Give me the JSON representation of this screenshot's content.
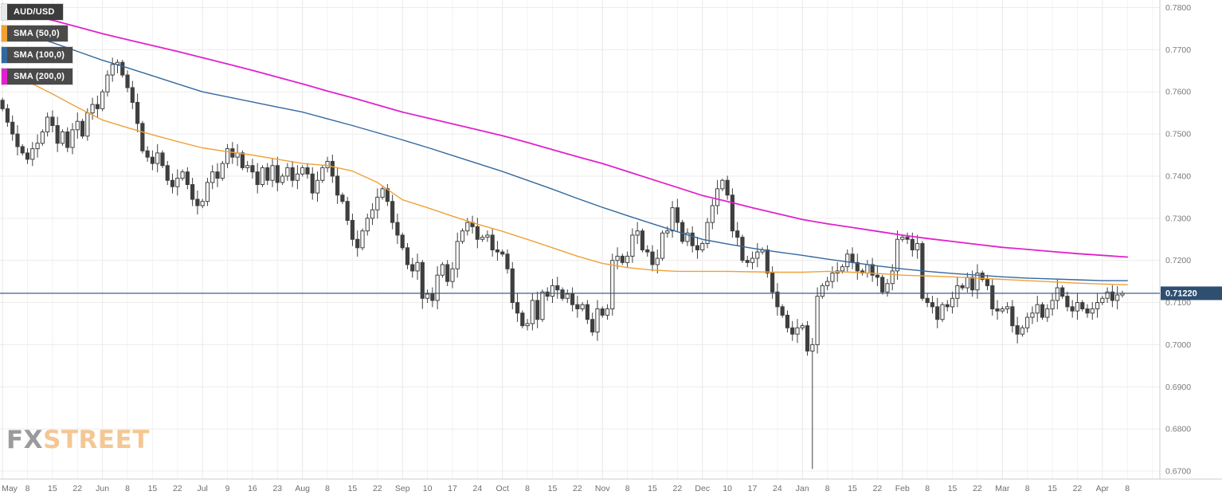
{
  "watermark": {
    "fx": "FX",
    "street": "STREET"
  },
  "legend": {
    "symbol": {
      "label": "AUD/USD",
      "chip_color": "#e9e9e9"
    },
    "indicators": [
      {
        "label": "SMA (50,0)",
        "chip_color": "#efa138"
      },
      {
        "label": "SMA (100,0)",
        "chip_color": "#33689e"
      },
      {
        "label": "SMA (200,0)",
        "chip_color": "#e022cc"
      }
    ]
  },
  "chart_data": {
    "type": "candlestick",
    "symbol": "AUD/USD",
    "title": "AUD/USD daily candlestick chart with SMA(50), SMA(100), SMA(200)",
    "current_price": 0.7122,
    "current_price_label": "0.71220",
    "price_line_color": "#2e4f70",
    "candle_up_fill": "#ffffff",
    "candle_down_fill": "#3f3f3f",
    "candle_stroke": "#3f3f3f",
    "y_axis": {
      "min": 0.67,
      "max": 0.78,
      "tick_step": 0.01,
      "tick_labels": [
        "0.7800",
        "0.7700",
        "0.7600",
        "0.7500",
        "0.7400",
        "0.7300",
        "0.7200",
        "0.7100",
        "0.7000",
        "0.6900",
        "0.6800",
        "0.6700"
      ]
    },
    "x_axis": {
      "labels": [
        "May",
        "8",
        "15",
        "22",
        "Jun",
        "8",
        "15",
        "22",
        "Jul",
        "9",
        "16",
        "23",
        "Aug",
        "8",
        "15",
        "22",
        "Sep",
        "10",
        "17",
        "24",
        "Oct",
        "8",
        "15",
        "22",
        "Nov",
        "8",
        "15",
        "22",
        "Dec",
        "10",
        "17",
        "24",
        "Jan",
        "8",
        "15",
        "22",
        "Feb",
        "8",
        "15",
        "22",
        "Mar",
        "8",
        "15",
        "22",
        "Apr",
        "8"
      ],
      "label_slot_step": 5,
      "total_slots": 232
    },
    "candles": {
      "first_open": 0.758,
      "closes": [
        0.756,
        0.7528,
        0.75,
        0.747,
        0.7455,
        0.744,
        0.7465,
        0.7478,
        0.7505,
        0.754,
        0.752,
        0.7478,
        0.7505,
        0.7468,
        0.751,
        0.753,
        0.7495,
        0.755,
        0.757,
        0.756,
        0.76,
        0.764,
        0.7665,
        0.767,
        0.764,
        0.761,
        0.7575,
        0.7525,
        0.746,
        0.7445,
        0.743,
        0.7455,
        0.7425,
        0.739,
        0.7375,
        0.7395,
        0.741,
        0.738,
        0.7345,
        0.733,
        0.734,
        0.7385,
        0.741,
        0.7395,
        0.743,
        0.7465,
        0.7445,
        0.7455,
        0.742,
        0.7425,
        0.741,
        0.738,
        0.742,
        0.739,
        0.7425,
        0.7385,
        0.74,
        0.742,
        0.739,
        0.7405,
        0.742,
        0.7405,
        0.736,
        0.739,
        0.742,
        0.7435,
        0.74,
        0.7355,
        0.734,
        0.7295,
        0.725,
        0.723,
        0.727,
        0.73,
        0.732,
        0.735,
        0.737,
        0.734,
        0.729,
        0.726,
        0.723,
        0.719,
        0.7175,
        0.7195,
        0.711,
        0.712,
        0.7105,
        0.7165,
        0.719,
        0.715,
        0.718,
        0.7245,
        0.727,
        0.729,
        0.728,
        0.725,
        0.7255,
        0.726,
        0.7225,
        0.722,
        0.7215,
        0.718,
        0.71,
        0.7075,
        0.7045,
        0.705,
        0.7105,
        0.706,
        0.7125,
        0.7115,
        0.714,
        0.713,
        0.711,
        0.712,
        0.7095,
        0.7085,
        0.7095,
        0.706,
        0.703,
        0.7085,
        0.707,
        0.7085,
        0.72,
        0.721,
        0.7195,
        0.721,
        0.726,
        0.727,
        0.7225,
        0.722,
        0.719,
        0.7205,
        0.7265,
        0.727,
        0.7325,
        0.729,
        0.7245,
        0.7265,
        0.7235,
        0.7225,
        0.724,
        0.729,
        0.733,
        0.737,
        0.739,
        0.7355,
        0.727,
        0.7255,
        0.72,
        0.7195,
        0.7205,
        0.722,
        0.7225,
        0.717,
        0.7125,
        0.709,
        0.707,
        0.704,
        0.7025,
        0.704,
        0.7045,
        0.6985,
        0.7,
        0.7115,
        0.714,
        0.715,
        0.717,
        0.7175,
        0.7185,
        0.7215,
        0.7195,
        0.7175,
        0.717,
        0.719,
        0.7165,
        0.716,
        0.7125,
        0.7145,
        0.7175,
        0.725,
        0.7255,
        0.725,
        0.7225,
        0.724,
        0.711,
        0.71,
        0.709,
        0.706,
        0.7095,
        0.709,
        0.711,
        0.714,
        0.7135,
        0.716,
        0.713,
        0.717,
        0.7155,
        0.714,
        0.7085,
        0.708,
        0.7085,
        0.709,
        0.7045,
        0.7025,
        0.704,
        0.7065,
        0.7075,
        0.7095,
        0.7065,
        0.7085,
        0.7105,
        0.7135,
        0.7115,
        0.709,
        0.708,
        0.71,
        0.7085,
        0.7075,
        0.7085,
        0.71,
        0.711,
        0.7125,
        0.7105,
        0.7118,
        0.7122
      ],
      "wick_overrides": {
        "23": {
          "high": 0.7677
        },
        "84": {
          "low": 0.7085
        },
        "118": {
          "low": 0.7021
        },
        "144": {
          "high": 0.7394
        },
        "162": {
          "low": 0.6705
        },
        "203": {
          "low": 0.7003
        }
      }
    },
    "sma_series": [
      {
        "name": "SMA (50,0)",
        "color": "#efa138",
        "width": 1.4,
        "anchor_step": 5,
        "values": [
          0.765,
          0.7625,
          0.7595,
          0.7563,
          0.7533,
          0.7515,
          0.7498,
          0.7482,
          0.7467,
          0.7458,
          0.745,
          0.744,
          0.743,
          0.7425,
          0.7412,
          0.7385,
          0.7344,
          0.7325,
          0.7305,
          0.7286,
          0.7269,
          0.725,
          0.723,
          0.721,
          0.7193,
          0.7183,
          0.7177,
          0.7174,
          0.7174,
          0.7174,
          0.7173,
          0.7172,
          0.7172,
          0.7174,
          0.7172,
          0.7169,
          0.7165,
          0.7163,
          0.7161,
          0.7158,
          0.7155,
          0.7152,
          0.7149,
          0.7146,
          0.7144,
          0.7142
        ]
      },
      {
        "name": "SMA (100,0)",
        "color": "#33689e",
        "width": 1.4,
        "anchor_step": 5,
        "values": [
          0.7755,
          0.7737,
          0.7717,
          0.7696,
          0.7675,
          0.7657,
          0.7638,
          0.7619,
          0.76,
          0.7588,
          0.7576,
          0.7564,
          0.7552,
          0.7536,
          0.752,
          0.7503,
          0.7486,
          0.7468,
          0.7449,
          0.743,
          0.7411,
          0.739,
          0.7369,
          0.7347,
          0.7326,
          0.7306,
          0.7287,
          0.7268,
          0.725,
          0.7239,
          0.7229,
          0.722,
          0.7212,
          0.7203,
          0.7195,
          0.7187,
          0.718,
          0.7174,
          0.7169,
          0.7165,
          0.7161,
          0.7158,
          0.7156,
          0.7154,
          0.7152,
          0.7152
        ]
      },
      {
        "name": "SMA (200,0)",
        "color": "#e022cc",
        "width": 1.8,
        "anchor_step": 5,
        "values": [
          0.78,
          0.7785,
          0.777,
          0.7754,
          0.7738,
          0.7724,
          0.771,
          0.7696,
          0.7681,
          0.7666,
          0.7651,
          0.7635,
          0.7619,
          0.7602,
          0.7586,
          0.7569,
          0.7552,
          0.7538,
          0.7524,
          0.751,
          0.7496,
          0.748,
          0.7463,
          0.7446,
          0.743,
          0.7411,
          0.7392,
          0.7373,
          0.7354,
          0.734,
          0.7325,
          0.7311,
          0.7297,
          0.7287,
          0.7278,
          0.7269,
          0.726,
          0.7252,
          0.7245,
          0.7238,
          0.7231,
          0.7226,
          0.7221,
          0.7216,
          0.7212,
          0.7208
        ]
      }
    ]
  }
}
